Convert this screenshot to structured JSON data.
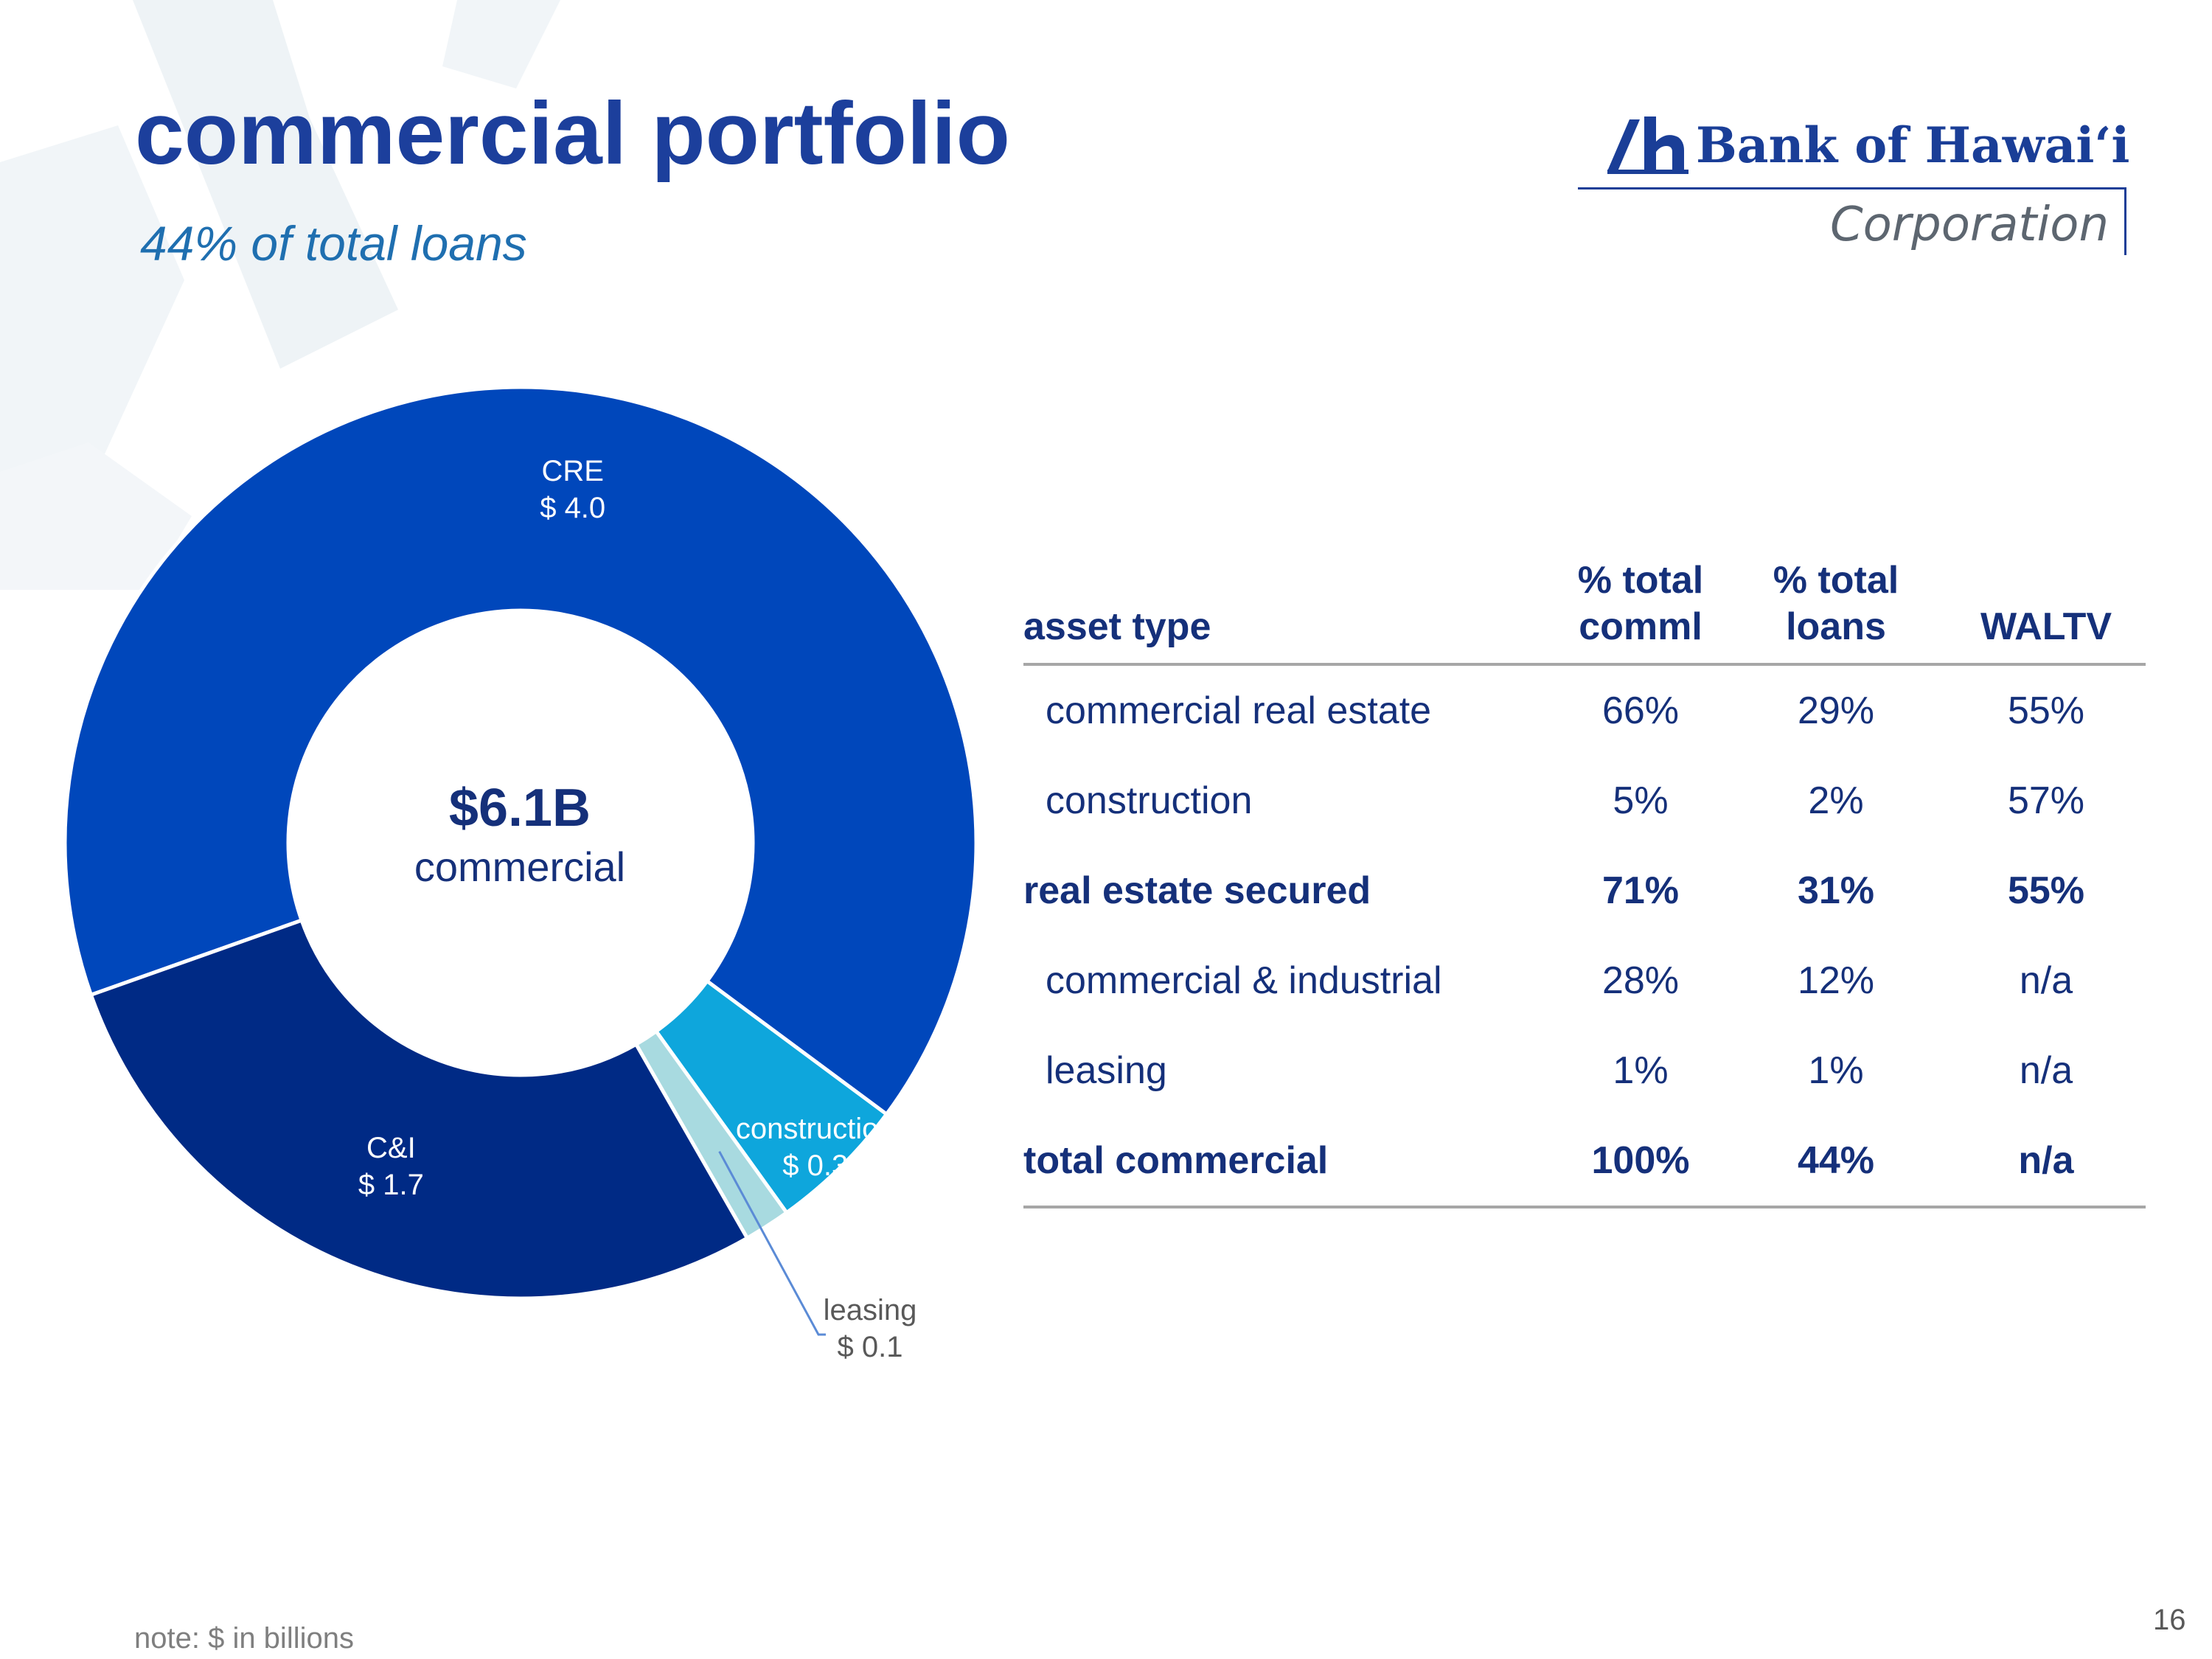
{
  "slide": {
    "title": "commercial portfolio",
    "subtitle": "44% of total loans",
    "note": "note: $ in billions",
    "page_number": "16"
  },
  "logo": {
    "name": "Bank of Hawaiʻi",
    "sub": "Corporation"
  },
  "chart_data": {
    "type": "pie",
    "style": "donut",
    "center_value": "$6.1B",
    "center_label": "commercial",
    "slices": [
      {
        "name": "CRE",
        "value": 4.0,
        "value_label": "$ 4.0",
        "color": "#0047bb"
      },
      {
        "name": "construction",
        "value": 0.3,
        "value_label": "$ 0.3",
        "color": "#0ea6dc"
      },
      {
        "name": "leasing",
        "value": 0.1,
        "value_label": "$ 0.1",
        "color": "#a8dae0"
      },
      {
        "name": "C&I",
        "value": 1.7,
        "value_label": "$ 1.7",
        "color": "#002a85"
      }
    ]
  },
  "table": {
    "headers": [
      "asset type",
      "% total\ncomml",
      "% total\nloans",
      "WALTV"
    ],
    "rows": [
      {
        "cells": [
          "commercial real estate",
          "66%",
          "29%",
          "55%"
        ],
        "bold": false
      },
      {
        "cells": [
          "construction",
          "5%",
          "2%",
          "57%"
        ],
        "bold": false
      },
      {
        "cells": [
          "real estate secured",
          "71%",
          "31%",
          "55%"
        ],
        "bold": true
      },
      {
        "cells": [
          "commercial & industrial",
          "28%",
          "12%",
          "n/a"
        ],
        "bold": false
      },
      {
        "cells": [
          "leasing",
          "1%",
          "1%",
          "n/a"
        ],
        "bold": false
      },
      {
        "cells": [
          "total commercial",
          "100%",
          "44%",
          "n/a"
        ],
        "bold": true
      }
    ]
  }
}
